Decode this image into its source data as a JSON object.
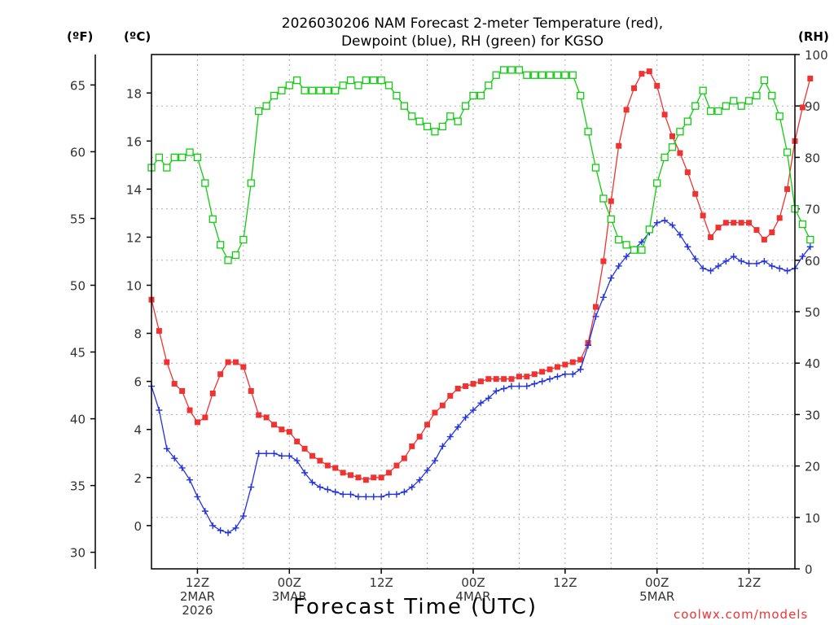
{
  "chart_data": {
    "type": "line",
    "title_line1": "2026030206 NAM Forecast 2-meter Temperature (red),",
    "title_line2": "Dewpoint (blue), RH (green) for KGSO",
    "xlabel": "Forecast Time (UTC)",
    "unit_f": "(ºF)",
    "unit_c": "(ºC)",
    "unit_rh": "(RH)",
    "credit": "coolwx.com/models",
    "colors": {
      "temperature": "#ee3333",
      "dewpoint": "#2233dd",
      "rh": "#11cc11",
      "grid": "#b0b0b0"
    },
    "x_hours_range": [
      6,
      90
    ],
    "yc_range": [
      -1.8,
      19.6
    ],
    "rh_range": [
      0,
      100
    ],
    "f_ticks": [
      30,
      35,
      40,
      45,
      50,
      55,
      60,
      65
    ],
    "c_ticks": [
      0,
      2,
      4,
      6,
      8,
      10,
      12,
      14,
      16,
      18
    ],
    "rh_ticks": [
      0,
      10,
      20,
      30,
      40,
      50,
      60,
      70,
      80,
      90,
      100
    ],
    "x_ticks": [
      {
        "hour": 12,
        "lines": [
          "12Z",
          "2MAR",
          "2026"
        ]
      },
      {
        "hour": 24,
        "lines": [
          "00Z",
          "3MAR"
        ]
      },
      {
        "hour": 36,
        "lines": [
          "12Z"
        ]
      },
      {
        "hour": 48,
        "lines": [
          "00Z",
          "4MAR"
        ]
      },
      {
        "hour": 60,
        "lines": [
          "12Z"
        ]
      },
      {
        "hour": 72,
        "lines": [
          "00Z",
          "5MAR"
        ]
      },
      {
        "hour": 84,
        "lines": [
          "12Z"
        ]
      }
    ],
    "series": [
      {
        "name": "Temperature",
        "unit": "C",
        "key": "temperature",
        "values": [
          9.4,
          8.1,
          6.8,
          5.9,
          5.6,
          4.8,
          4.3,
          4.5,
          5.5,
          6.3,
          6.8,
          6.8,
          6.6,
          5.6,
          4.6,
          4.5,
          4.2,
          4.0,
          3.9,
          3.5,
          3.2,
          2.9,
          2.7,
          2.5,
          2.4,
          2.2,
          2.1,
          2.0,
          1.9,
          2.0,
          2.0,
          2.2,
          2.5,
          2.8,
          3.3,
          3.7,
          4.2,
          4.7,
          5.0,
          5.4,
          5.7,
          5.8,
          5.9,
          6.0,
          6.1,
          6.1,
          6.1,
          6.1,
          6.2,
          6.2,
          6.3,
          6.4,
          6.5,
          6.6,
          6.7,
          6.8,
          6.9,
          7.6,
          9.1,
          11.0,
          13.5,
          15.8,
          17.3,
          18.2,
          18.8,
          18.9,
          18.3,
          17.1,
          16.2,
          15.5,
          14.7,
          13.8,
          12.9,
          12.0,
          12.4,
          12.6,
          12.6,
          12.6,
          12.6,
          12.3,
          11.9,
          12.2,
          12.8,
          14.0,
          16.0,
          17.4,
          18.6
        ]
      },
      {
        "name": "Dewpoint",
        "unit": "C",
        "key": "dewpoint",
        "values": [
          5.8,
          4.8,
          3.2,
          2.8,
          2.4,
          1.9,
          1.2,
          0.6,
          0.0,
          -0.2,
          -0.3,
          -0.1,
          0.4,
          1.6,
          3.0,
          3.0,
          3.0,
          2.9,
          2.9,
          2.7,
          2.2,
          1.8,
          1.6,
          1.5,
          1.4,
          1.3,
          1.3,
          1.2,
          1.2,
          1.2,
          1.2,
          1.3,
          1.3,
          1.4,
          1.6,
          1.9,
          2.3,
          2.7,
          3.3,
          3.7,
          4.1,
          4.5,
          4.8,
          5.1,
          5.3,
          5.6,
          5.7,
          5.8,
          5.8,
          5.8,
          5.9,
          6.0,
          6.1,
          6.2,
          6.3,
          6.3,
          6.5,
          7.5,
          8.7,
          9.5,
          10.3,
          10.8,
          11.2,
          11.5,
          11.8,
          12.2,
          12.6,
          12.7,
          12.5,
          12.1,
          11.6,
          11.1,
          10.7,
          10.6,
          10.8,
          11.0,
          11.2,
          11.0,
          10.9,
          10.9,
          11.0,
          10.8,
          10.7,
          10.6,
          10.7,
          11.2,
          11.6
        ]
      },
      {
        "name": "RH",
        "unit": "%",
        "key": "rh",
        "values": [
          78,
          80,
          78,
          80,
          80,
          81,
          80,
          75,
          68,
          63,
          60,
          61,
          64,
          75,
          89,
          90,
          92,
          93,
          94,
          95,
          93,
          93,
          93,
          93,
          93,
          94,
          95,
          94,
          95,
          95,
          95,
          94,
          92,
          90,
          88,
          87,
          86,
          85,
          86,
          88,
          87,
          90,
          92,
          92,
          94,
          96,
          97,
          97,
          97,
          96,
          96,
          96,
          96,
          96,
          96,
          96,
          92,
          85,
          78,
          72,
          68,
          64,
          63,
          62,
          62,
          66,
          75,
          80,
          82,
          85,
          87,
          90,
          93,
          89,
          89,
          90,
          91,
          90,
          91,
          92,
          95,
          92,
          88,
          81,
          70,
          67,
          64
        ]
      }
    ]
  }
}
